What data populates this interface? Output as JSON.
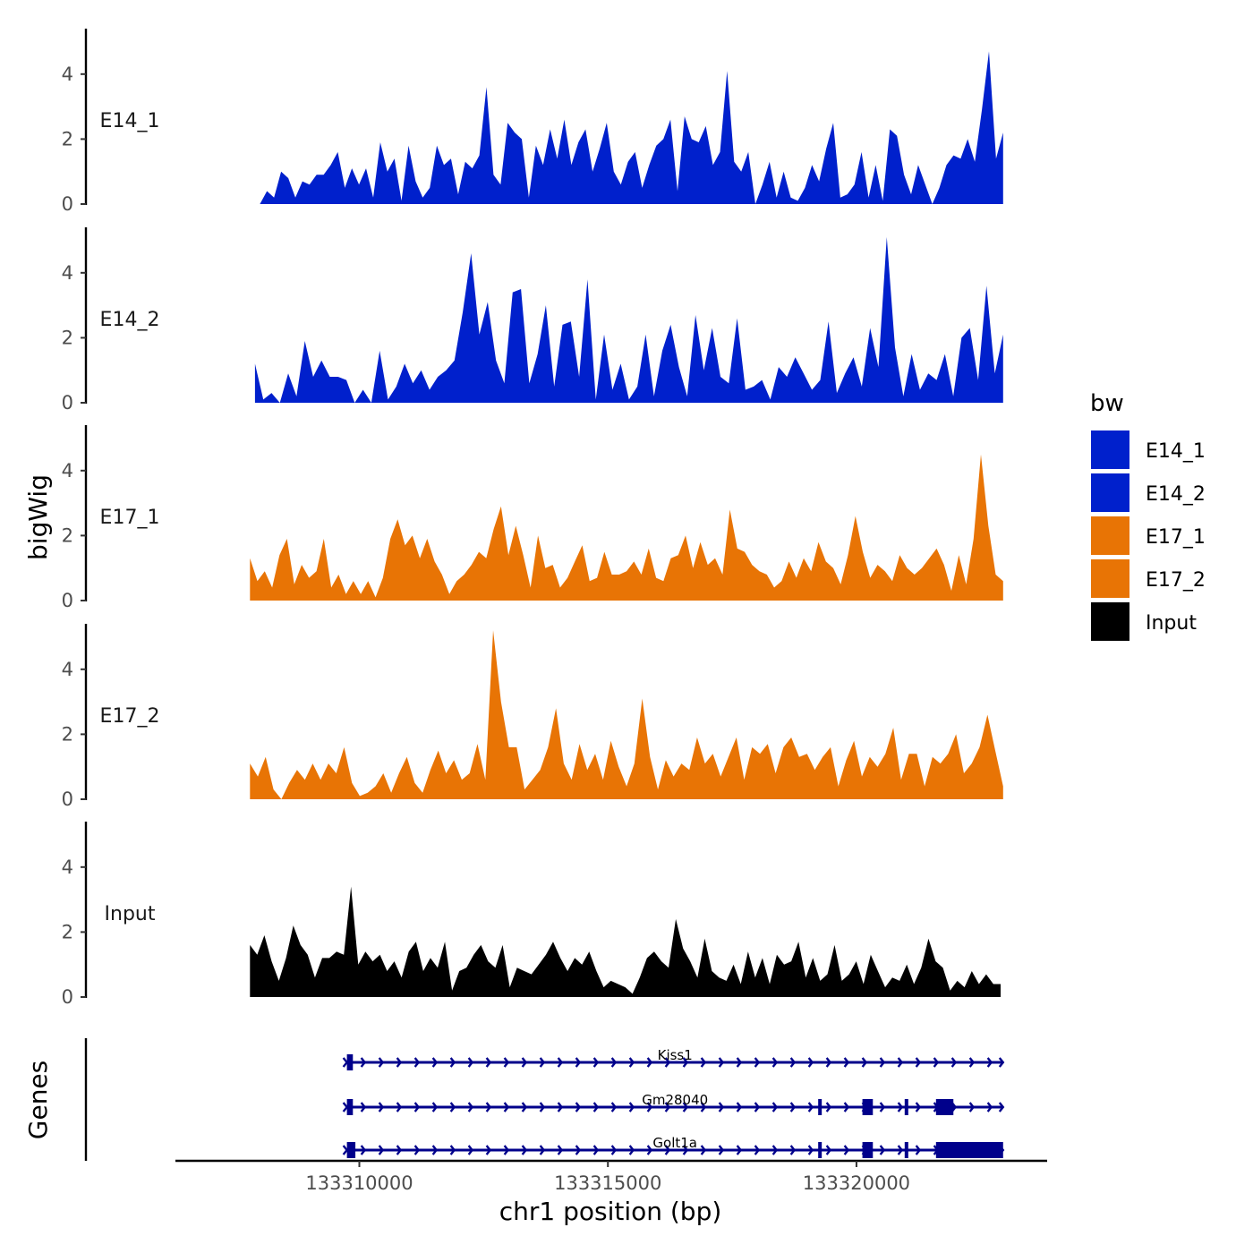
{
  "chart_data": {
    "type": "area",
    "title": "",
    "xlabel": "chr1 position (bp)",
    "ylabel": "bigWig",
    "genes_label": "Genes",
    "x_range": [
      133306300,
      133323800
    ],
    "x_ticks": [
      133310000,
      133315000,
      133320000
    ],
    "x_tick_labels": [
      "133310000",
      "133315000",
      "133320000"
    ],
    "y_range": [
      0,
      5.4
    ],
    "y_ticks": [
      0,
      2,
      4
    ],
    "y_tick_labels": [
      "0",
      "2",
      "4"
    ],
    "legend": {
      "title": "bw",
      "position": "right",
      "entries": [
        {
          "label": "E14_1",
          "color": "#0020cc"
        },
        {
          "label": "E14_2",
          "color": "#0020cc"
        },
        {
          "label": "E17_1",
          "color": "#e87405"
        },
        {
          "label": "E17_2",
          "color": "#e87405"
        },
        {
          "label": "Input",
          "color": "#000000"
        }
      ]
    },
    "series": [
      {
        "name": "E14_1",
        "color": "#0020cc",
        "x_start": 133308000,
        "x_end": 133322950,
        "values": [
          0,
          0.4,
          0.2,
          1.0,
          0.8,
          0.2,
          0.7,
          0.6,
          0.9,
          0.9,
          1.2,
          1.6,
          0.5,
          1.1,
          0.6,
          1.1,
          0.2,
          1.9,
          1.0,
          1.4,
          0.1,
          1.8,
          0.7,
          0.2,
          0.5,
          1.8,
          1.2,
          1.4,
          0.3,
          1.3,
          1.1,
          1.5,
          3.6,
          0.9,
          0.6,
          2.5,
          2.2,
          2.0,
          0.2,
          1.8,
          1.2,
          2.3,
          1.4,
          2.6,
          1.2,
          1.9,
          2.3,
          1.0,
          1.7,
          2.5,
          1.0,
          0.6,
          1.3,
          1.6,
          0.5,
          1.2,
          1.8,
          2.0,
          2.6,
          0.4,
          2.7,
          2.0,
          1.9,
          2.4,
          1.2,
          1.6,
          4.1,
          1.3,
          1.0,
          1.6,
          0.0,
          0.6,
          1.3,
          0.2,
          1.0,
          0.2,
          0.1,
          0.5,
          1.2,
          0.7,
          1.7,
          2.5,
          0.2,
          0.3,
          0.6,
          1.6,
          0.2,
          1.2,
          0.1,
          2.3,
          2.1,
          0.9,
          0.3,
          1.2,
          0.6,
          0.0,
          0.5,
          1.2,
          1.5,
          1.4,
          2.0,
          1.3,
          2.9,
          4.7,
          1.4,
          2.2
        ]
      },
      {
        "name": "E14_2",
        "color": "#0020cc",
        "x_start": 133307900,
        "x_end": 133322950,
        "values": [
          1.2,
          0.1,
          0.3,
          0.0,
          0.9,
          0.2,
          1.9,
          0.8,
          1.3,
          0.8,
          0.8,
          0.7,
          0.0,
          0.4,
          0.0,
          1.6,
          0.1,
          0.5,
          1.2,
          0.6,
          1.0,
          0.4,
          0.8,
          1.0,
          1.3,
          2.8,
          4.6,
          2.1,
          3.1,
          1.3,
          0.6,
          3.4,
          3.5,
          0.6,
          1.5,
          3.0,
          0.5,
          2.4,
          2.5,
          0.8,
          3.8,
          0.1,
          2.1,
          0.4,
          1.2,
          0.1,
          0.5,
          2.1,
          0.2,
          1.6,
          2.4,
          1.1,
          0.2,
          2.7,
          1.0,
          2.3,
          0.8,
          0.6,
          2.6,
          0.4,
          0.5,
          0.7,
          0.1,
          1.1,
          0.8,
          1.4,
          0.9,
          0.4,
          0.7,
          2.5,
          0.3,
          0.9,
          1.4,
          0.5,
          2.3,
          1.1,
          5.1,
          1.7,
          0.2,
          1.5,
          0.4,
          0.9,
          0.7,
          1.5,
          0.2,
          2.0,
          2.3,
          0.7,
          3.6,
          0.9,
          2.1
        ]
      },
      {
        "name": "E17_1",
        "color": "#e87405",
        "x_start": 133307800,
        "x_end": 133322950,
        "values": [
          1.3,
          0.6,
          0.9,
          0.4,
          1.4,
          1.9,
          0.5,
          1.1,
          0.7,
          0.9,
          1.9,
          0.4,
          0.8,
          0.2,
          0.6,
          0.2,
          0.6,
          0.1,
          0.7,
          1.9,
          2.5,
          1.7,
          2.0,
          1.3,
          1.9,
          1.2,
          0.8,
          0.2,
          0.6,
          0.8,
          1.1,
          1.5,
          1.3,
          2.2,
          2.9,
          1.4,
          2.3,
          1.4,
          0.4,
          2.0,
          1.0,
          1.1,
          0.4,
          0.7,
          1.2,
          1.7,
          0.6,
          0.7,
          1.5,
          0.8,
          0.8,
          0.9,
          1.2,
          0.8,
          1.6,
          0.7,
          0.6,
          1.3,
          1.4,
          2.0,
          1.0,
          1.8,
          1.1,
          1.3,
          0.8,
          2.8,
          1.6,
          1.5,
          1.1,
          0.9,
          0.8,
          0.4,
          0.6,
          1.2,
          0.7,
          1.3,
          0.9,
          1.8,
          1.2,
          1.0,
          0.5,
          1.4,
          2.6,
          1.5,
          0.7,
          1.1,
          0.9,
          0.6,
          1.4,
          1.0,
          0.8,
          1.0,
          1.3,
          1.6,
          1.1,
          0.3,
          1.4,
          0.5,
          1.9,
          4.5,
          2.3,
          0.8,
          0.6
        ]
      },
      {
        "name": "E17_2",
        "color": "#e87405",
        "x_start": 133307800,
        "x_end": 133322950,
        "values": [
          1.1,
          0.7,
          1.3,
          0.3,
          0.0,
          0.5,
          0.9,
          0.6,
          1.1,
          0.6,
          1.1,
          0.8,
          1.6,
          0.5,
          0.1,
          0.2,
          0.4,
          0.8,
          0.2,
          0.8,
          1.3,
          0.5,
          0.2,
          0.9,
          1.5,
          0.8,
          1.2,
          0.6,
          0.8,
          1.7,
          0.6,
          5.2,
          3.0,
          1.6,
          1.6,
          0.3,
          0.6,
          0.9,
          1.6,
          2.8,
          1.1,
          0.6,
          1.7,
          0.9,
          1.4,
          0.6,
          1.8,
          1.0,
          0.4,
          1.1,
          3.1,
          1.3,
          0.3,
          1.2,
          0.7,
          1.1,
          0.9,
          1.9,
          1.1,
          1.4,
          0.7,
          1.3,
          1.9,
          0.6,
          1.6,
          1.4,
          1.7,
          0.8,
          1.6,
          1.9,
          1.3,
          1.4,
          0.9,
          1.3,
          1.6,
          0.4,
          1.2,
          1.8,
          0.7,
          1.3,
          1.0,
          1.4,
          2.2,
          0.6,
          1.4,
          1.4,
          0.4,
          1.3,
          1.1,
          1.4,
          2.0,
          0.8,
          1.1,
          1.6,
          2.6,
          1.5,
          0.4
        ]
      },
      {
        "name": "Input",
        "color": "#000000",
        "x_start": 133307800,
        "x_end": 133322900,
        "values": [
          1.6,
          1.3,
          1.9,
          1.1,
          0.5,
          1.2,
          2.2,
          1.6,
          1.3,
          0.6,
          1.2,
          1.2,
          1.4,
          1.3,
          3.4,
          1.0,
          1.4,
          1.1,
          1.3,
          0.8,
          1.1,
          0.6,
          1.4,
          1.7,
          0.8,
          1.2,
          0.9,
          1.7,
          0.2,
          0.8,
          0.9,
          1.3,
          1.6,
          1.1,
          0.9,
          1.6,
          0.3,
          0.9,
          0.8,
          0.7,
          1.0,
          1.3,
          1.7,
          1.2,
          0.8,
          1.2,
          1.0,
          1.4,
          0.8,
          0.3,
          0.5,
          0.4,
          0.3,
          0.1,
          0.6,
          1.2,
          1.4,
          1.1,
          0.9,
          2.4,
          1.5,
          1.1,
          0.6,
          1.8,
          0.8,
          0.6,
          0.5,
          1.0,
          0.4,
          1.4,
          0.6,
          1.2,
          0.4,
          1.3,
          1.0,
          1.1,
          1.7,
          0.6,
          1.2,
          0.5,
          0.7,
          1.6,
          0.5,
          0.7,
          1.1,
          0.4,
          1.3,
          0.8,
          0.3,
          0.6,
          0.5,
          1.0,
          0.4,
          0.9,
          1.8,
          1.1,
          0.9,
          0.2,
          0.5,
          0.3,
          0.8,
          0.4,
          0.7,
          0.4,
          0.4
        ]
      }
    ],
    "genes": [
      {
        "name": "Kiss1",
        "start": 133309750,
        "end": 133322950,
        "exons": [
          [
            133309750,
            133309870
          ]
        ]
      },
      {
        "name": "Gm28040",
        "start": 133309750,
        "end": 133322950,
        "exons": [
          [
            133309750,
            133309870
          ],
          [
            133319230,
            133319280
          ],
          [
            133320120,
            133320330
          ],
          [
            133320970,
            133321020
          ],
          [
            133321600,
            133321950
          ]
        ]
      },
      {
        "name": "Golt1a",
        "start": 133309750,
        "end": 133322950,
        "exons": [
          [
            133309750,
            133309920
          ],
          [
            133319230,
            133319280
          ],
          [
            133320120,
            133320330
          ],
          [
            133320970,
            133321020
          ],
          [
            133321600,
            133322950
          ]
        ]
      }
    ]
  }
}
